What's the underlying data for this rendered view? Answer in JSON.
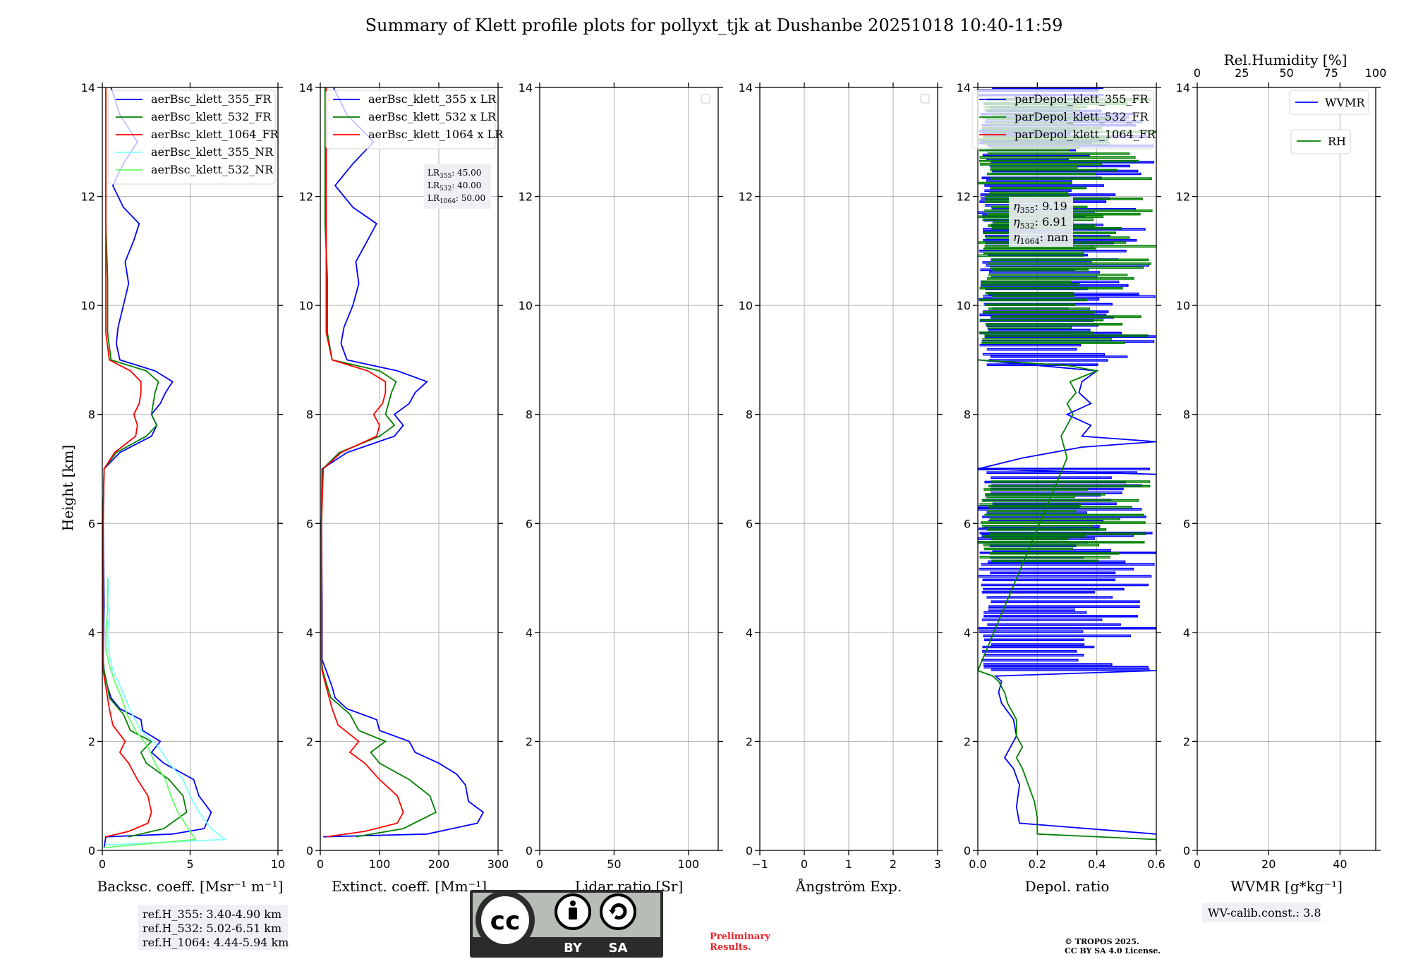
{
  "title": "Summary of Klett profile plots for pollyxt_tjk at Dushanbe 20251018 10:40-11:59",
  "chart_data": [
    {
      "type": "line",
      "panel": "backscatter",
      "xlabel": "Backsc. coeff. [Msr⁻¹ m⁻¹]",
      "ylabel": "Height [km]",
      "xlim": [
        0,
        10
      ],
      "ylim": [
        0,
        14
      ],
      "xticks": [
        "0",
        "5",
        "10"
      ],
      "yticks": [
        "0",
        "2",
        "4",
        "6",
        "8",
        "10",
        "12",
        "14"
      ],
      "legend": "top-right",
      "series": [
        {
          "name": "aerBsc_klett_355_FR",
          "color": "#0000ff",
          "h": [
            0.05,
            0.25,
            0.3,
            0.4,
            0.7,
            1.0,
            1.3,
            1.6,
            1.8,
            2.0,
            2.2,
            2.4,
            2.6,
            2.8,
            3.0,
            3.3,
            3.5,
            4.5,
            6.0,
            7.0,
            7.3,
            7.6,
            7.8,
            8.0,
            8.2,
            8.4,
            8.6,
            8.8,
            9.0,
            9.3,
            9.6,
            10.0,
            10.4,
            10.8,
            11.2,
            11.5,
            11.8,
            12.2,
            12.6,
            13.0,
            13.5,
            14.0
          ],
          "v": [
            0.1,
            0.2,
            4.0,
            5.8,
            6.2,
            5.5,
            5.2,
            3.5,
            2.8,
            3.3,
            2.3,
            2.2,
            1.0,
            0.5,
            0.3,
            0.1,
            0.05,
            0.1,
            0.05,
            0.1,
            1.0,
            2.8,
            3.1,
            2.8,
            3.3,
            3.6,
            4.0,
            3.0,
            1.0,
            0.8,
            0.9,
            1.2,
            1.5,
            1.3,
            1.8,
            2.1,
            1.2,
            0.6,
            1.2,
            2.0,
            1.0,
            0.5
          ]
        },
        {
          "name": "aerBsc_klett_532_FR",
          "color": "#008000",
          "h": [
            0.25,
            0.4,
            0.7,
            1.0,
            1.3,
            1.6,
            1.8,
            2.0,
            2.2,
            2.5,
            2.8,
            3.0,
            3.3,
            3.5,
            4.5,
            6.0,
            7.0,
            7.3,
            7.6,
            7.8,
            8.0,
            8.2,
            8.4,
            8.6,
            8.8,
            9.0,
            9.5,
            10.5,
            11.5,
            12.5,
            13.5,
            14.0
          ],
          "v": [
            1.5,
            3.5,
            4.8,
            4.6,
            3.8,
            2.5,
            2.2,
            2.8,
            1.6,
            1.2,
            0.4,
            0.3,
            0.1,
            0.05,
            0.05,
            0.05,
            0.1,
            0.8,
            2.5,
            3.1,
            2.8,
            2.9,
            3.0,
            3.2,
            2.5,
            0.5,
            0.3,
            0.3,
            0.2,
            0.2,
            0.2,
            0.2
          ]
        },
        {
          "name": "aerBsc_klett_1064_FR",
          "color": "#ff0000",
          "h": [
            0.25,
            0.35,
            0.5,
            0.7,
            1.0,
            1.3,
            1.6,
            1.8,
            2.0,
            2.3,
            2.6,
            3.0,
            3.3,
            3.5,
            4.5,
            6.0,
            7.0,
            7.3,
            7.6,
            7.8,
            8.0,
            8.2,
            8.4,
            8.6,
            8.8,
            9.0,
            9.5,
            10.5,
            11.5,
            12.5,
            13.5,
            14.0
          ],
          "v": [
            0.2,
            1.5,
            2.6,
            2.8,
            2.6,
            2.0,
            1.5,
            1.0,
            1.3,
            0.6,
            0.4,
            0.2,
            0.05,
            0.05,
            0.05,
            0.05,
            0.1,
            0.7,
            1.9,
            2.0,
            1.8,
            2.1,
            2.2,
            2.2,
            1.6,
            0.4,
            0.2,
            0.2,
            0.2,
            0.2,
            0.2,
            0.2
          ]
        },
        {
          "name": "aerBsc_klett_355_NR",
          "color": "#7fffff",
          "h": [
            0.1,
            0.2,
            0.4,
            0.7,
            1.0,
            1.3,
            1.6,
            1.9,
            2.2,
            2.5,
            2.8,
            3.1,
            3.3,
            3.6,
            4.0,
            4.3,
            4.6,
            4.9,
            5.0
          ],
          "v": [
            0.2,
            7.0,
            6.2,
            5.5,
            5.0,
            4.6,
            3.8,
            3.2,
            2.2,
            1.7,
            1.3,
            0.9,
            0.6,
            0.4,
            0.3,
            0.4,
            0.3,
            0.4,
            0.3
          ]
        },
        {
          "name": "aerBsc_klett_532_NR",
          "color": "#66ff66",
          "h": [
            0.05,
            0.2,
            0.4,
            0.7,
            1.0,
            1.3,
            1.6,
            1.9,
            2.2,
            2.5,
            2.8,
            3.1,
            3.4,
            3.7,
            4.0,
            4.4,
            4.8,
            5.0
          ],
          "v": [
            0.1,
            5.3,
            4.9,
            4.3,
            3.9,
            3.6,
            3.0,
            2.6,
            1.9,
            1.4,
            1.1,
            0.7,
            0.4,
            0.2,
            0.2,
            0.3,
            0.3,
            0.3
          ]
        }
      ]
    },
    {
      "type": "line",
      "panel": "extinction",
      "xlabel": "Extinct. coeff. [Mm⁻¹]",
      "xlim": [
        0,
        300
      ],
      "ylim": [
        0,
        14
      ],
      "xticks": [
        "0",
        "100",
        "200",
        "300"
      ],
      "yticks": [
        "0",
        "2",
        "4",
        "6",
        "8",
        "10",
        "12",
        "14"
      ],
      "legend": "top-right",
      "series": [
        {
          "name": "aerBsc_klett_355 x LR",
          "color": "#0000ff",
          "h": [
            0.25,
            0.3,
            0.5,
            0.7,
            0.9,
            1.2,
            1.4,
            1.6,
            1.8,
            2.0,
            2.2,
            2.4,
            2.6,
            2.8,
            3.0,
            3.3,
            3.5,
            4.5,
            6.0,
            7.0,
            7.3,
            7.6,
            7.8,
            8.0,
            8.2,
            8.4,
            8.6,
            8.8,
            9.0,
            9.3,
            9.6,
            10.0,
            10.4,
            10.8,
            11.2,
            11.5,
            11.8,
            12.2,
            12.6,
            13.0,
            13.5,
            14.0
          ],
          "v": [
            5,
            180,
            265,
            275,
            250,
            245,
            230,
            200,
            160,
            150,
            100,
            95,
            45,
            25,
            20,
            10,
            3,
            3,
            2,
            3,
            45,
            125,
            140,
            125,
            150,
            160,
            180,
            130,
            45,
            35,
            40,
            55,
            65,
            60,
            80,
            95,
            55,
            25,
            55,
            90,
            45,
            22
          ]
        },
        {
          "name": "aerBsc_klett_532 x LR",
          "color": "#008000",
          "h": [
            0.25,
            0.4,
            0.7,
            1.0,
            1.3,
            1.6,
            1.8,
            2.0,
            2.2,
            2.5,
            2.8,
            3.0,
            3.3,
            3.5,
            4.5,
            6.0,
            7.0,
            7.3,
            7.6,
            7.8,
            8.0,
            8.2,
            8.4,
            8.6,
            8.8,
            9.0,
            9.5,
            10.5,
            11.5,
            12.5,
            13.5,
            14.0
          ],
          "v": [
            60,
            140,
            195,
            185,
            150,
            100,
            85,
            110,
            65,
            50,
            18,
            12,
            4,
            2,
            2,
            2,
            4,
            32,
            100,
            125,
            110,
            115,
            120,
            128,
            100,
            20,
            12,
            12,
            8,
            8,
            8,
            8
          ]
        },
        {
          "name": "aerBsc_klett_1064 x LR",
          "color": "#ff0000",
          "h": [
            0.25,
            0.35,
            0.5,
            0.7,
            1.0,
            1.3,
            1.6,
            1.8,
            2.0,
            2.3,
            2.6,
            3.0,
            3.3,
            3.5,
            4.5,
            6.0,
            7.0,
            7.3,
            7.6,
            7.8,
            8.0,
            8.2,
            8.4,
            8.6,
            8.8,
            9.0,
            9.5,
            10.5,
            11.5,
            12.5,
            13.5,
            14.0
          ],
          "v": [
            10,
            75,
            130,
            140,
            130,
            100,
            75,
            50,
            65,
            30,
            20,
            10,
            3,
            2,
            2,
            2,
            5,
            35,
            95,
            100,
            90,
            105,
            110,
            110,
            80,
            20,
            10,
            10,
            10,
            10,
            10,
            10
          ]
        }
      ]
    },
    {
      "type": "line",
      "panel": "lidar_ratio",
      "xlabel": "Lidar ratio [Sr]",
      "xlim": [
        0,
        120
      ],
      "ylim": [
        0,
        14
      ],
      "xticks": [
        "0",
        "50",
        "100"
      ],
      "yticks": [
        "0",
        "2",
        "4",
        "6",
        "8",
        "10",
        "12",
        "14"
      ],
      "series": []
    },
    {
      "type": "line",
      "panel": "angstrom",
      "xlabel": "Ångström Exp.",
      "xlim": [
        -1,
        3
      ],
      "ylim": [
        0,
        14
      ],
      "xticks": [
        "−1",
        "0",
        "1",
        "2",
        "3"
      ],
      "yticks": [
        "0",
        "2",
        "4",
        "6",
        "8",
        "10",
        "12",
        "14"
      ],
      "series": []
    },
    {
      "type": "line",
      "panel": "depol",
      "xlabel": "Depol. ratio",
      "xlim": [
        0,
        0.6
      ],
      "ylim": [
        0,
        14
      ],
      "xticks": [
        "0.0",
        "0.2",
        "0.4",
        "0.6"
      ],
      "yticks": [
        "0",
        "2",
        "4",
        "6",
        "8",
        "10",
        "12",
        "14"
      ],
      "legend": "top-right",
      "series": [
        {
          "name": "parDepol_klett_355_FR",
          "color": "#0000ff",
          "h": [
            0.1,
            0.3,
            0.5,
            0.8,
            1.2,
            1.5,
            1.7,
            1.9,
            2.1,
            2.4,
            2.7,
            2.9,
            3.1,
            3.2,
            3.3,
            6.9,
            7.0,
            7.2,
            7.4,
            7.5,
            7.6,
            7.8,
            8.0,
            8.2,
            8.4,
            8.6,
            8.8,
            8.9,
            9.0
          ],
          "v": [
            0.6,
            0.6,
            0.14,
            0.13,
            0.14,
            0.12,
            0.09,
            0.11,
            0.13,
            0.12,
            0.08,
            0.07,
            0.08,
            0.06,
            0.6,
            0.6,
            0.0,
            0.15,
            0.35,
            0.6,
            0.35,
            0.38,
            0.3,
            0.38,
            0.34,
            0.35,
            0.4,
            0.2,
            0.0
          ],
          "noise_bands": [
            [
              3.3,
              7.0
            ],
            [
              8.9,
              14.0
            ]
          ]
        },
        {
          "name": "parDepol_klett_532_FR",
          "color": "#008000",
          "h": [
            0.2,
            0.3,
            0.6,
            0.9,
            1.2,
            1.5,
            1.7,
            1.9,
            2.1,
            2.4,
            2.7,
            2.9,
            3.1,
            3.2,
            3.3,
            7.2,
            7.4,
            7.6,
            7.8,
            8.0,
            8.2,
            8.4,
            8.6,
            8.8,
            8.9,
            9.0
          ],
          "v": [
            0.6,
            0.2,
            0.2,
            0.19,
            0.17,
            0.15,
            0.13,
            0.15,
            0.13,
            0.13,
            0.1,
            0.09,
            0.07,
            0.05,
            0.0,
            0.3,
            0.29,
            0.28,
            0.3,
            0.32,
            0.3,
            0.33,
            0.31,
            0.4,
            0.3,
            0.0
          ],
          "noise_bands": [
            [
              5.3,
              6.8
            ],
            [
              9.3,
              13.8
            ]
          ]
        },
        {
          "name": "parDepol_klett_1064_FR",
          "color": "#ff0000",
          "h": [],
          "v": []
        }
      ]
    },
    {
      "type": "line",
      "panel": "wvmr",
      "xlabel": "WVMR [g*kg⁻¹]",
      "x2label": "Rel.Humidity [%]",
      "xlim": [
        0,
        50
      ],
      "x2lim": [
        0,
        100
      ],
      "ylim": [
        0,
        14
      ],
      "xticks": [
        "0",
        "20",
        "40"
      ],
      "x2ticks": [
        "0",
        "25",
        "50",
        "75",
        "100"
      ],
      "yticks": [
        "0",
        "2",
        "4",
        "6",
        "8",
        "10",
        "12",
        "14"
      ],
      "series": [
        {
          "name": "WVMR",
          "color": "#0000ff",
          "h": [],
          "v": []
        },
        {
          "name": "RH",
          "color": "#008000",
          "h": [],
          "v": []
        }
      ]
    }
  ],
  "info": {
    "lr_box": [
      "45.00",
      "40.00",
      "50.00"
    ],
    "lr_labels": [
      "LR",
      "355",
      "LR",
      "532",
      "LR",
      "1064"
    ],
    "eta_box": [
      "9.19",
      "6.91",
      "nan"
    ],
    "eta_labels": [
      "η",
      "355",
      "η",
      "532",
      "η",
      "1064"
    ],
    "refh": [
      "ref.H_355: 3.40-4.90 km",
      "ref.H_532: 5.02-6.51 km",
      "ref.H_1064: 4.44-5.94 km"
    ],
    "wv_calib": "WV-calib.const.: 3.8",
    "preliminary": [
      "Preliminary",
      "Results."
    ],
    "copyright": [
      "© TROPOS 2025.",
      "CC BY SA 4.0 License."
    ],
    "license_badge": {
      "main": "cc",
      "by": "BY",
      "sa": "SA"
    }
  }
}
